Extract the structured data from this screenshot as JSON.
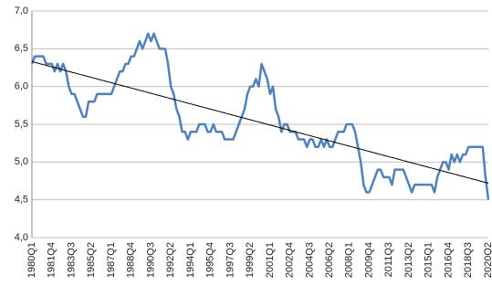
{
  "chart_data": {
    "type": "line",
    "categories": [
      "1980Q1",
      null,
      null,
      null,
      null,
      null,
      null,
      "1981Q4",
      null,
      null,
      null,
      null,
      null,
      null,
      "1983Q3",
      null,
      null,
      null,
      null,
      null,
      null,
      "1985Q2",
      null,
      null,
      null,
      null,
      null,
      null,
      "1987Q1",
      null,
      null,
      null,
      null,
      null,
      null,
      "1988Q4",
      null,
      null,
      null,
      null,
      null,
      null,
      "1990Q3",
      null,
      null,
      null,
      null,
      null,
      null,
      "1992Q2",
      null,
      null,
      null,
      null,
      null,
      null,
      "1994Q1",
      null,
      null,
      null,
      null,
      null,
      null,
      "1995Q4",
      null,
      null,
      null,
      null,
      null,
      null,
      "1997Q3",
      null,
      null,
      null,
      null,
      null,
      null,
      "1999Q2",
      null,
      null,
      null,
      null,
      null,
      null,
      "2001Q1",
      null,
      null,
      null,
      null,
      null,
      null,
      "2002Q4",
      null,
      null,
      null,
      null,
      null,
      null,
      "2004Q3",
      null,
      null,
      null,
      null,
      null,
      null,
      "2006Q2",
      null,
      null,
      null,
      null,
      null,
      null,
      "2008Q1",
      null,
      null,
      null,
      null,
      null,
      null,
      "2009Q4",
      null,
      null,
      null,
      null,
      null,
      null,
      "2011Q3",
      null,
      null,
      null,
      null,
      null,
      null,
      "2013Q2",
      null,
      null,
      null,
      null,
      null,
      null,
      "2015Q1",
      null,
      null,
      null,
      null,
      null,
      null,
      "2016Q4",
      null,
      null,
      null,
      null,
      null,
      null,
      "2018Q3",
      null,
      null,
      null,
      null,
      null,
      null,
      "2020Q2"
    ],
    "series": [
      {
        "color": "#4f81bd",
        "width": 2.5,
        "values": [
          6.3,
          6.4,
          6.4,
          6.4,
          6.4,
          6.3,
          6.3,
          6.3,
          6.2,
          6.3,
          6.2,
          6.3,
          6.2,
          6.0,
          5.9,
          5.9,
          5.8,
          5.7,
          5.6,
          5.6,
          5.8,
          5.8,
          5.8,
          5.9,
          5.9,
          5.9,
          5.9,
          5.9,
          5.9,
          6.0,
          6.1,
          6.2,
          6.2,
          6.3,
          6.3,
          6.4,
          6.4,
          6.5,
          6.6,
          6.5,
          6.6,
          6.7,
          6.6,
          6.7,
          6.6,
          6.5,
          6.5,
          6.5,
          6.3,
          6.0,
          5.9,
          5.7,
          5.6,
          5.4,
          5.4,
          5.3,
          5.4,
          5.4,
          5.4,
          5.5,
          5.5,
          5.5,
          5.4,
          5.4,
          5.5,
          5.4,
          5.4,
          5.4,
          5.3,
          5.3,
          5.3,
          5.3,
          5.4,
          5.5,
          5.6,
          5.7,
          5.9,
          6.0,
          6.0,
          6.1,
          6.0,
          6.3,
          6.2,
          6.1,
          5.9,
          6.0,
          5.7,
          5.6,
          5.4,
          5.5,
          5.5,
          5.4,
          5.4,
          5.4,
          5.3,
          5.3,
          5.3,
          5.2,
          5.3,
          5.3,
          5.2,
          5.2,
          5.3,
          5.2,
          5.3,
          5.2,
          5.2,
          5.3,
          5.4,
          5.4,
          5.4,
          5.5,
          5.5,
          5.5,
          5.4,
          5.2,
          5.0,
          4.7,
          4.6,
          4.6,
          4.7,
          4.8,
          4.9,
          4.9,
          4.8,
          4.8,
          4.8,
          4.7,
          4.9,
          4.9,
          4.9,
          4.9,
          4.8,
          4.7,
          4.6,
          4.7,
          4.7,
          4.7,
          4.7,
          4.7,
          4.7,
          4.7,
          4.6,
          4.8,
          4.9,
          5.0,
          5.0,
          4.9,
          5.1,
          5.0,
          5.1,
          5.0,
          5.1,
          5.1,
          5.2,
          5.2,
          5.2,
          5.2,
          5.2,
          5.2,
          4.8,
          4.5
        ]
      },
      {
        "color": "#000000",
        "width": 1,
        "values": [
          6.33,
          6.32,
          6.31,
          6.3,
          6.29,
          6.28,
          6.27,
          6.26,
          6.25,
          6.24,
          6.23,
          6.22,
          6.21,
          6.2,
          6.19,
          6.18,
          6.17,
          6.16,
          6.15,
          6.14,
          6.13,
          6.12,
          6.11,
          6.1,
          6.09,
          6.08,
          6.07,
          6.06,
          6.05,
          6.04,
          6.03,
          6.02,
          6.01,
          6.0,
          5.99,
          5.98,
          5.97,
          5.96,
          5.95,
          5.94,
          5.93,
          5.92,
          5.91,
          5.9,
          5.89,
          5.88,
          5.87,
          5.86,
          5.85,
          5.84,
          5.83,
          5.82,
          5.81,
          5.8,
          5.79,
          5.78,
          5.77,
          5.76,
          5.75,
          5.74,
          5.73,
          5.72,
          5.71,
          5.7,
          5.69,
          5.68,
          5.67,
          5.66,
          5.65,
          5.64,
          5.63,
          5.62,
          5.61,
          5.6,
          5.59,
          5.58,
          5.57,
          5.56,
          5.55,
          5.54,
          5.53,
          5.52,
          5.51,
          5.5,
          5.49,
          5.48,
          5.47,
          5.46,
          5.45,
          5.44,
          5.43,
          5.42,
          5.41,
          5.4,
          5.39,
          5.38,
          5.37,
          5.36,
          5.35,
          5.34,
          5.33,
          5.32,
          5.31,
          5.3,
          5.29,
          5.28,
          5.27,
          5.26,
          5.25,
          5.24,
          5.23,
          5.22,
          5.21,
          5.2,
          5.19,
          5.18,
          5.17,
          5.16,
          5.15,
          5.14,
          5.13,
          5.12,
          5.11,
          5.1,
          5.09,
          5.08,
          5.07,
          5.06,
          5.05,
          5.04,
          5.03,
          5.02,
          5.01,
          5.0,
          4.99,
          4.98,
          4.97,
          4.96,
          4.95,
          4.94,
          4.93,
          4.92,
          4.91,
          4.9,
          4.89,
          4.88,
          4.87,
          4.86,
          4.85,
          4.84,
          4.83,
          4.82,
          4.81,
          4.8,
          4.79,
          4.78,
          4.77,
          4.76,
          4.75,
          4.74,
          4.73,
          4.72
        ]
      }
    ],
    "ylim": [
      4,
      7
    ],
    "yticks": [
      {
        "value": 4,
        "label": "4,0"
      },
      {
        "value": 4.5,
        "label": "4,5"
      },
      {
        "value": 5,
        "label": "5,0"
      },
      {
        "value": 5.5,
        "label": "5,5"
      },
      {
        "value": 6,
        "label": "6,0"
      },
      {
        "value": 6.5,
        "label": "6,5"
      },
      {
        "value": 7,
        "label": "7,0"
      }
    ],
    "grid": true
  }
}
